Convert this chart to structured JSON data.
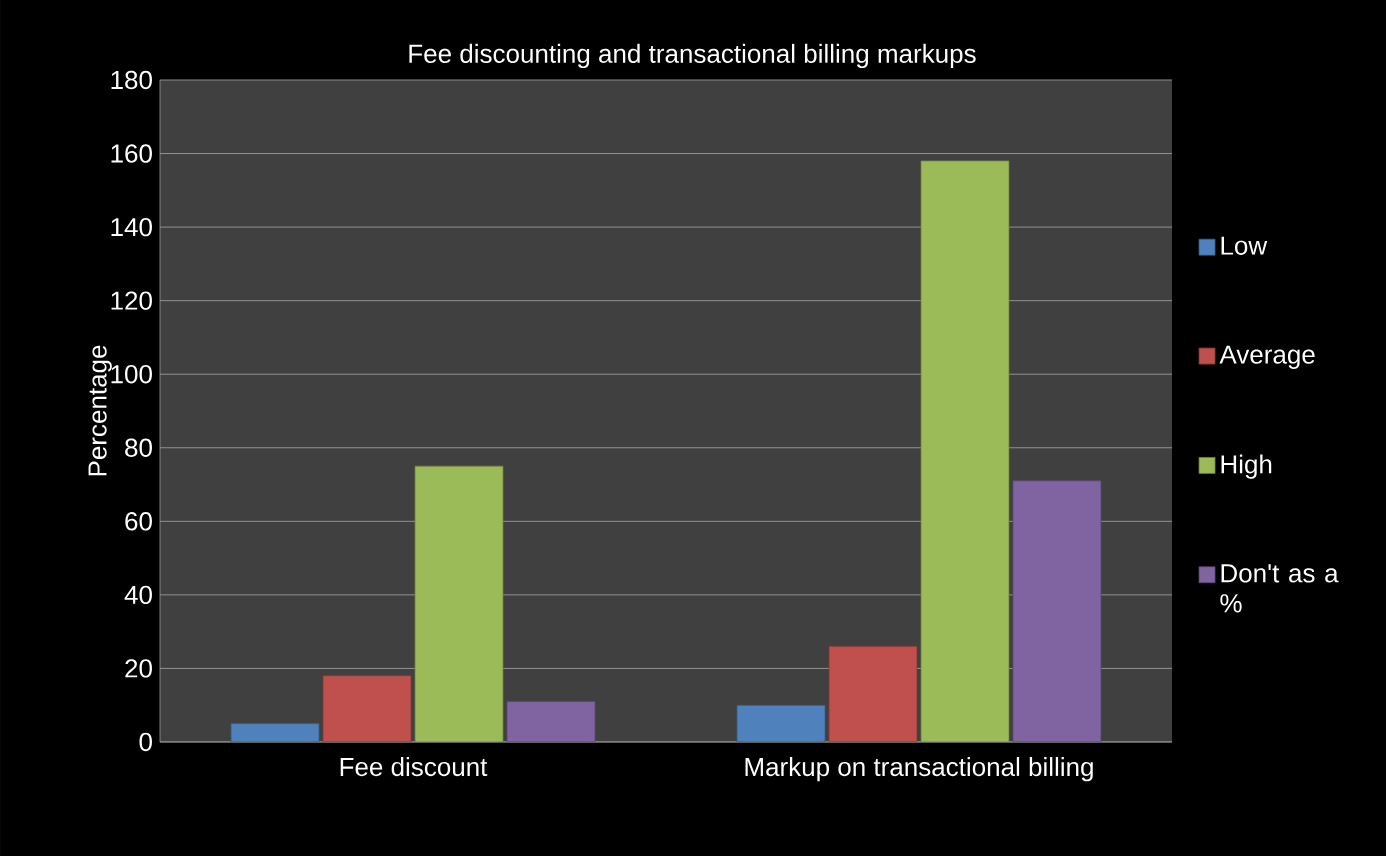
{
  "chart_data": {
    "type": "bar",
    "title": "Fee discounting and transactional billing markups",
    "ylabel": "Percentage",
    "categories": [
      "Fee discount",
      "Markup on transactional billing"
    ],
    "series": [
      {
        "name": "Low",
        "color": "#4f81bd",
        "values": [
          5,
          10
        ]
      },
      {
        "name": "Average",
        "color": "#c0504d",
        "values": [
          18,
          26
        ]
      },
      {
        "name": "High",
        "color": "#9bbb59",
        "values": [
          75,
          158
        ]
      },
      {
        "name": "Don't as a %",
        "color": "#8064a2",
        "values": [
          11,
          71
        ]
      }
    ],
    "ylim": [
      0,
      180
    ],
    "yticks": [
      0,
      20,
      40,
      60,
      80,
      100,
      120,
      140,
      160,
      180
    ],
    "grid": "y",
    "legend": "right"
  }
}
